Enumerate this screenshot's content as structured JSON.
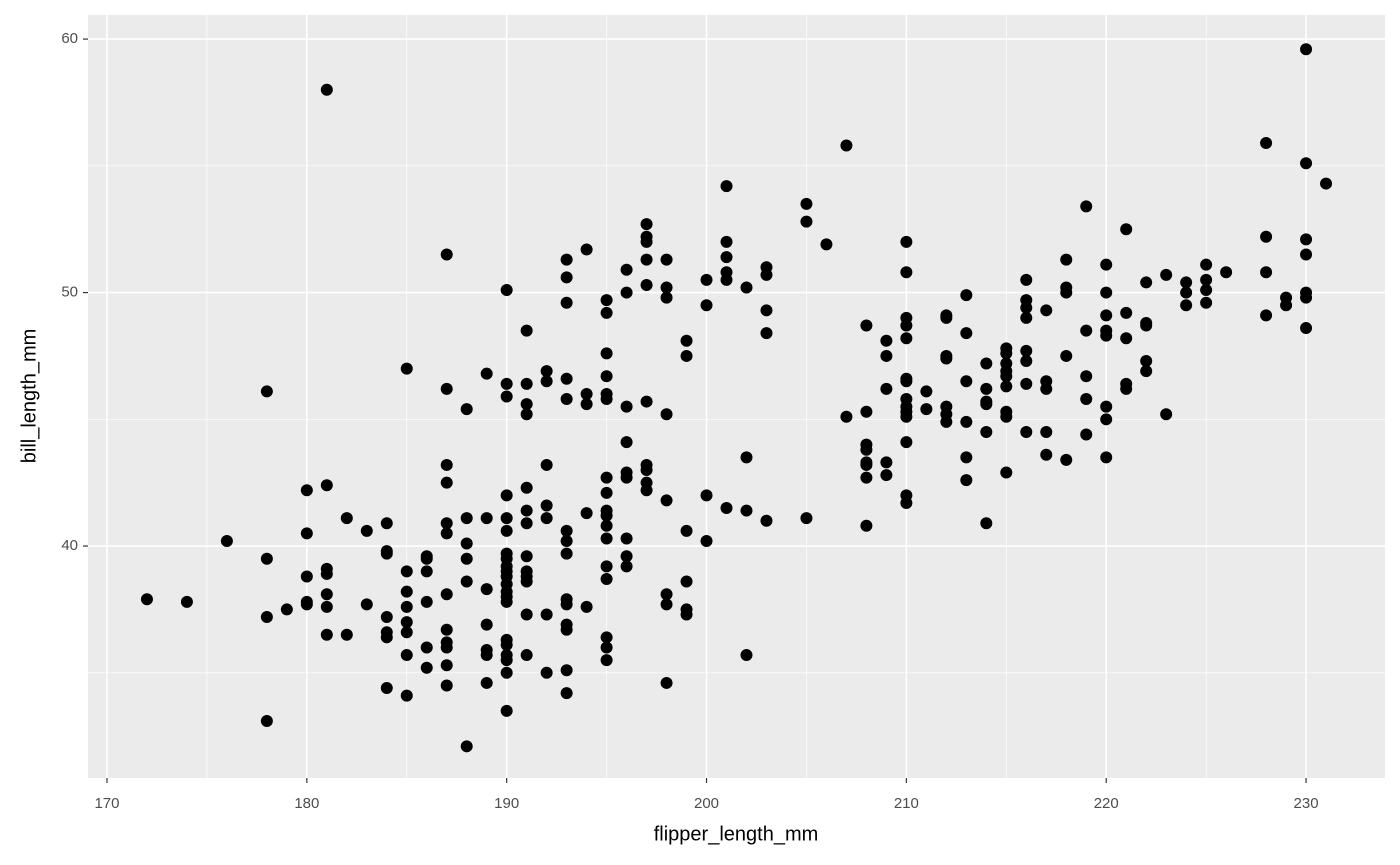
{
  "chart_data": {
    "type": "scatter",
    "x_label": "flipper_length_mm",
    "y_label": "bill_length_mm",
    "color": "#000000",
    "grid": true,
    "xlim": [
      169.05,
      233.95
    ],
    "xticks": [
      170,
      180,
      190,
      200,
      210,
      220,
      230
    ],
    "ylim": [
      30.85,
      60.95
    ],
    "yticks": [
      40,
      50,
      60
    ],
    "x": [
      172,
      174,
      176,
      178,
      178,
      178,
      178,
      179,
      180,
      180,
      180,
      180,
      180,
      181,
      181,
      181,
      181,
      181,
      181,
      181,
      182,
      182,
      183,
      183,
      184,
      184,
      184,
      184,
      184,
      184,
      184,
      185,
      185,
      185,
      185,
      185,
      185,
      185,
      185,
      186,
      186,
      186,
      186,
      186,
      186,
      187,
      187,
      187,
      187,
      187,
      187,
      187,
      187,
      187,
      187,
      187,
      187,
      188,
      188,
      188,
      188,
      188,
      188,
      189,
      189,
      189,
      189,
      189,
      189,
      189,
      190,
      190,
      190,
      190,
      190,
      190,
      190,
      190,
      190,
      190,
      190,
      190,
      190,
      190,
      190,
      190,
      190,
      190,
      190,
      190,
      190,
      191,
      191,
      191,
      191,
      191,
      191,
      191,
      191,
      191,
      191,
      191,
      191,
      191,
      192,
      192,
      192,
      192,
      192,
      192,
      192,
      193,
      193,
      193,
      193,
      193,
      193,
      193,
      193,
      193,
      193,
      193,
      193,
      193,
      193,
      194,
      194,
      194,
      194,
      194,
      195,
      195,
      195,
      195,
      195,
      195,
      195,
      195,
      195,
      195,
      195,
      195,
      195,
      195,
      195,
      195,
      195,
      196,
      196,
      196,
      196,
      196,
      196,
      196,
      196,
      196,
      197,
      197,
      197,
      197,
      197,
      197,
      197,
      197,
      197,
      197,
      198,
      198,
      198,
      198,
      198,
      198,
      198,
      198,
      199,
      199,
      199,
      199,
      199,
      199,
      200,
      200,
      200,
      200,
      201,
      201,
      201,
      201,
      201,
      201,
      202,
      202,
      202,
      202,
      203,
      203,
      203,
      203,
      203,
      205,
      205,
      205,
      206,
      207,
      207,
      208,
      208,
      208,
      208,
      208,
      208,
      208,
      208,
      209,
      209,
      209,
      209,
      209,
      210,
      210,
      210,
      210,
      210,
      210,
      210,
      210,
      210,
      210,
      210,
      210,
      210,
      210,
      211,
      211,
      212,
      212,
      212,
      212,
      212,
      212,
      212,
      213,
      213,
      213,
      213,
      213,
      213,
      214,
      214,
      214,
      214,
      214,
      214,
      215,
      215,
      215,
      215,
      215,
      215,
      215,
      215,
      215,
      216,
      216,
      216,
      216,
      216,
      216,
      216,
      216,
      217,
      217,
      217,
      217,
      217,
      218,
      218,
      218,
      218,
      218,
      219,
      219,
      219,
      219,
      219,
      220,
      220,
      220,
      220,
      220,
      220,
      220,
      220,
      221,
      221,
      221,
      221,
      221,
      222,
      222,
      222,
      222,
      222,
      223,
      223,
      224,
      224,
      224,
      225,
      225,
      225,
      225,
      226,
      228,
      228,
      228,
      228,
      229,
      229,
      230,
      230,
      230,
      230,
      230,
      230,
      230,
      231
    ],
    "values": [
      37.9,
      37.8,
      40.2,
      46.1,
      39.5,
      37.2,
      33.1,
      37.5,
      42.2,
      40.5,
      38.8,
      37.8,
      37.7,
      58.0,
      42.4,
      39.1,
      38.9,
      38.1,
      37.6,
      36.5,
      41.1,
      36.5,
      40.6,
      37.7,
      40.9,
      39.8,
      39.7,
      37.2,
      36.6,
      36.4,
      34.4,
      47.0,
      39.0,
      38.2,
      37.6,
      37.0,
      36.6,
      35.7,
      34.1,
      39.6,
      39.5,
      39.0,
      37.8,
      36.0,
      35.2,
      51.5,
      46.2,
      43.2,
      42.5,
      40.9,
      40.5,
      38.1,
      36.7,
      36.2,
      36.0,
      35.3,
      34.5,
      45.4,
      41.1,
      40.1,
      39.5,
      38.6,
      32.1,
      46.8,
      41.1,
      38.3,
      36.9,
      35.9,
      35.7,
      34.6,
      50.1,
      46.4,
      45.9,
      42.0,
      41.1,
      40.6,
      39.7,
      39.5,
      39.2,
      39.0,
      38.8,
      38.5,
      38.2,
      38.0,
      37.8,
      36.3,
      36.1,
      35.7,
      35.5,
      35.0,
      33.5,
      48.5,
      46.4,
      45.6,
      45.2,
      42.3,
      41.4,
      40.9,
      39.6,
      39.0,
      38.8,
      38.6,
      37.3,
      35.7,
      46.9,
      46.5,
      43.2,
      41.6,
      41.1,
      37.3,
      35.0,
      51.3,
      50.6,
      49.6,
      46.6,
      45.8,
      40.6,
      40.2,
      39.7,
      37.9,
      37.7,
      36.9,
      36.7,
      35.1,
      34.2,
      51.7,
      46.0,
      45.6,
      41.3,
      37.6,
      49.7,
      49.2,
      47.6,
      46.7,
      46.0,
      45.8,
      42.7,
      42.1,
      41.4,
      41.2,
      40.8,
      40.3,
      39.2,
      38.7,
      36.4,
      36.0,
      35.5,
      50.9,
      50.0,
      45.5,
      44.1,
      42.9,
      42.7,
      40.3,
      39.6,
      39.2,
      52.7,
      52.2,
      52.0,
      51.3,
      50.3,
      45.7,
      43.2,
      43.0,
      42.5,
      42.2,
      51.3,
      50.2,
      49.8,
      45.2,
      41.8,
      38.1,
      37.7,
      34.6,
      48.1,
      47.5,
      40.6,
      38.6,
      37.5,
      37.3,
      50.5,
      49.5,
      42.0,
      40.2,
      54.2,
      52.0,
      51.4,
      50.8,
      50.5,
      41.5,
      50.2,
      43.5,
      41.4,
      35.7,
      51.0,
      50.7,
      49.3,
      48.4,
      41.0,
      53.5,
      52.8,
      41.1,
      51.9,
      55.8,
      45.1,
      48.7,
      45.3,
      44.0,
      43.8,
      43.3,
      43.2,
      42.7,
      40.8,
      48.1,
      47.5,
      46.2,
      43.3,
      42.8,
      52.0,
      50.8,
      49.0,
      48.7,
      48.2,
      46.6,
      46.5,
      45.8,
      45.5,
      45.3,
      45.1,
      44.1,
      42.0,
      41.7,
      46.1,
      45.4,
      49.1,
      49.0,
      47.5,
      47.4,
      45.5,
      45.2,
      44.9,
      49.9,
      48.4,
      46.5,
      44.9,
      43.5,
      42.6,
      47.2,
      46.2,
      45.7,
      45.6,
      44.5,
      40.9,
      47.8,
      47.6,
      47.2,
      46.9,
      46.7,
      46.3,
      45.3,
      45.1,
      42.9,
      50.5,
      49.7,
      49.4,
      49.0,
      47.7,
      47.3,
      46.4,
      44.5,
      49.3,
      46.5,
      46.2,
      44.5,
      43.6,
      51.3,
      50.2,
      50.0,
      47.5,
      43.4,
      53.4,
      48.5,
      46.7,
      45.8,
      44.4,
      51.1,
      50.0,
      49.1,
      48.5,
      48.3,
      45.5,
      45.0,
      43.5,
      52.5,
      49.2,
      48.2,
      46.4,
      46.2,
      50.4,
      48.8,
      48.7,
      47.3,
      46.9,
      50.7,
      45.2,
      50.4,
      50.0,
      49.5,
      51.1,
      50.5,
      50.1,
      49.6,
      50.8,
      55.9,
      52.2,
      50.8,
      49.1,
      49.8,
      49.5,
      59.6,
      55.1,
      52.1,
      51.5,
      50.0,
      49.8,
      48.6,
      54.3
    ]
  }
}
